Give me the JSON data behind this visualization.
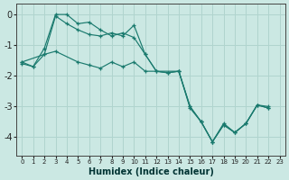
{
  "xlabel": "Humidex (Indice chaleur)",
  "background_color": "#cbe8e3",
  "grid_color": "#b0d4ce",
  "line_color": "#1a7a6e",
  "xlim": [
    -0.5,
    23.5
  ],
  "ylim": [
    -4.6,
    0.35
  ],
  "xticks": [
    0,
    1,
    2,
    3,
    4,
    5,
    6,
    7,
    8,
    9,
    10,
    11,
    12,
    13,
    14,
    15,
    16,
    17,
    18,
    19,
    20,
    21,
    22,
    23
  ],
  "yticks": [
    0,
    -1,
    -2,
    -3,
    -4
  ],
  "series1_x": [
    0,
    1,
    2,
    3,
    4,
    5,
    6,
    7,
    8,
    9,
    10,
    11,
    12,
    13,
    14,
    15,
    16,
    17,
    18,
    19,
    20,
    21,
    22
  ],
  "series1_y": [
    -1.6,
    -1.7,
    -1.1,
    0.0,
    0.0,
    -0.3,
    -0.25,
    -0.5,
    -0.7,
    -0.6,
    -0.75,
    -1.3,
    -1.85,
    -1.9,
    -1.85,
    -3.05,
    -3.5,
    -4.15,
    -3.55,
    -3.85,
    -3.55,
    -2.95,
    -3.05
  ],
  "series2_x": [
    0,
    2,
    3,
    4,
    5,
    6,
    7,
    8,
    9,
    10,
    11,
    12,
    13,
    14,
    15,
    16,
    17,
    18,
    19,
    20,
    21,
    22
  ],
  "series2_y": [
    -1.55,
    -1.3,
    -0.05,
    -0.3,
    -0.5,
    -0.65,
    -0.7,
    -0.6,
    -0.7,
    -0.35,
    -1.3,
    -1.85,
    -1.9,
    -1.85,
    -3.0,
    -3.5,
    -4.15,
    -3.6,
    -3.85,
    -3.55,
    -2.95,
    -3.05
  ],
  "series3_x": [
    0,
    1,
    2,
    3,
    5,
    6,
    7,
    8,
    9,
    10,
    11,
    14,
    15,
    16,
    17,
    18,
    19,
    20,
    21,
    22
  ],
  "series3_y": [
    -1.55,
    -1.7,
    -1.3,
    -1.2,
    -1.55,
    -1.65,
    -1.75,
    -1.55,
    -1.7,
    -1.55,
    -1.85,
    -1.85,
    -3.0,
    -3.5,
    -4.15,
    -3.6,
    -3.85,
    -3.55,
    -2.95,
    -3.0
  ]
}
